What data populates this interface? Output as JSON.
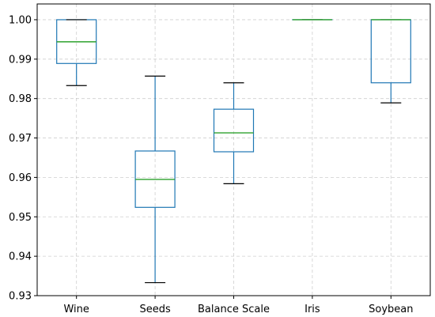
{
  "chart_data": {
    "type": "box",
    "title": "",
    "xlabel": "",
    "ylabel": "",
    "categories": [
      "Wine",
      "Seeds",
      "Balance Scale",
      "Iris",
      "Soybean"
    ],
    "ylim": [
      0.93,
      1.004
    ],
    "yticks": [
      "0.93",
      "0.94",
      "0.95",
      "0.96",
      "0.97",
      "0.98",
      "0.99",
      "1.00"
    ],
    "yticks_values": [
      0.93,
      0.94,
      0.95,
      0.96,
      0.97,
      0.98,
      0.99,
      1.0
    ],
    "grid": true,
    "legend": "none",
    "boxes": [
      {
        "category": "Wine",
        "whisker_low": 0.9833,
        "q1": 0.9889,
        "median": 0.9944,
        "q3": 1.0,
        "whisker_high": 1.0
      },
      {
        "category": "Seeds",
        "whisker_low": 0.9333,
        "q1": 0.9524,
        "median": 0.9595,
        "q3": 0.9667,
        "whisker_high": 0.9857
      },
      {
        "category": "Balance Scale",
        "whisker_low": 0.9584,
        "q1": 0.9665,
        "median": 0.9713,
        "q3": 0.9773,
        "whisker_high": 0.984
      },
      {
        "category": "Iris",
        "whisker_low": 1.0,
        "q1": 1.0,
        "median": 1.0,
        "q3": 1.0,
        "whisker_high": 1.0
      },
      {
        "category": "Soybean",
        "whisker_low": 0.9789,
        "q1": 0.984,
        "median": 1.0,
        "q3": 1.0,
        "whisker_high": 1.0
      }
    ]
  },
  "colors": {
    "box": "#1f77b4",
    "median": "#2ca02c",
    "whisker": "#1f77b4",
    "cap": "#000000",
    "grid": "#b0b0b0",
    "axes": "#000000"
  }
}
